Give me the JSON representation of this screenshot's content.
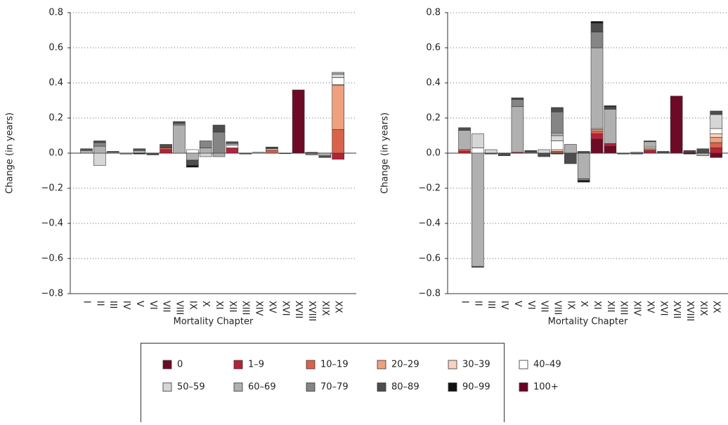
{
  "chart_data": [
    {
      "type": "stacked_bar",
      "x_label": "Mortality Chapter",
      "y_label": "Change (in years)",
      "categories": [
        "I",
        "II",
        "III",
        "IV",
        "V",
        "VI",
        "VII",
        "VIII",
        "IX",
        "X",
        "XI",
        "XII",
        "XIII",
        "XIV",
        "XV",
        "XVI",
        "XVII",
        "XVIII",
        "XIX",
        "XX"
      ],
      "ylim": [
        -0.8,
        0.8
      ],
      "yticks": [
        {
          "value": -0.8,
          "label": "−0.8"
        },
        {
          "value": -0.6,
          "label": "−0.6"
        },
        {
          "value": -0.4,
          "label": "−0.4"
        },
        {
          "value": -0.2,
          "label": "−0.2"
        },
        {
          "value": 0,
          "label": "0.0"
        },
        0.2,
        0.4,
        0.6,
        0.8
      ],
      "grid": true,
      "series": [
        {
          "name": "0",
          "color": "#6e0a26",
          "values": [
            0,
            0,
            0,
            0,
            0,
            0,
            0,
            0,
            0,
            0,
            0,
            0,
            0,
            0,
            0,
            -0.003,
            0.36,
            0,
            0,
            0
          ]
        },
        {
          "name": "1–9",
          "color": "#b5223a",
          "values": [
            0,
            0,
            0,
            0,
            0,
            0,
            0.02,
            0,
            0,
            0,
            0,
            0.03,
            0,
            0,
            0,
            0,
            0,
            0,
            0,
            -0.035
          ]
        },
        {
          "name": "10–19",
          "color": "#d9634a",
          "values": [
            0,
            0,
            0,
            0,
            0,
            0,
            0.01,
            0,
            0,
            0,
            0,
            0,
            0,
            0,
            0.015,
            0,
            0,
            0,
            0,
            0.135
          ]
        },
        {
          "name": "20–29",
          "color": "#f0a07e",
          "values": [
            0,
            0,
            0,
            0,
            0,
            0,
            0,
            0,
            0,
            0,
            0,
            0,
            0,
            0,
            0.01,
            0,
            0,
            0,
            0,
            0.25
          ]
        },
        {
          "name": "30–39",
          "color": "#f9d3c0",
          "values": [
            0,
            0,
            0,
            0,
            0,
            0,
            0,
            0,
            0,
            0,
            0,
            0,
            0,
            0,
            0,
            0,
            0,
            0,
            0,
            0.005
          ]
        },
        {
          "name": "40–49",
          "color": "#ffffff",
          "values": [
            0,
            0,
            0,
            0,
            0,
            0,
            0,
            0,
            0.02,
            0,
            0,
            0.015,
            0,
            0,
            0,
            0,
            0,
            0,
            0,
            0.04
          ]
        },
        {
          "name": "50–59",
          "color": "#d6d6d6",
          "values": [
            0,
            -0.07,
            0,
            0,
            0,
            0,
            0,
            0,
            0,
            -0.02,
            0,
            0,
            0,
            0,
            0,
            0,
            0,
            0,
            0,
            0.02
          ]
        },
        {
          "name": "60–69",
          "color": "#b0b0b0",
          "values": [
            0.015,
            0.04,
            0.005,
            0,
            0.015,
            0,
            0,
            0.16,
            -0.04,
            0.03,
            -0.02,
            0.01,
            0,
            0.005,
            0,
            0,
            0,
            0,
            -0.015,
            0.01
          ]
        },
        {
          "name": "70–79",
          "color": "#858585",
          "values": [
            0,
            0.02,
            0,
            -0.005,
            0,
            0,
            0,
            0.01,
            0,
            0.04,
            0.12,
            0,
            0,
            0,
            0,
            0,
            0,
            -0.01,
            0,
            0
          ]
        },
        {
          "name": "80–89",
          "color": "#4d4d4d",
          "values": [
            0.01,
            0.01,
            0.005,
            0,
            0.01,
            -0.01,
            0.02,
            0.01,
            -0.03,
            0,
            0.04,
            0.01,
            -0.005,
            0,
            0.01,
            0,
            0,
            0.005,
            -0.01,
            0
          ]
        },
        {
          "name": "90–99",
          "color": "#111111",
          "values": [
            0,
            0,
            0,
            0,
            -0.005,
            0,
            0,
            0,
            -0.01,
            0,
            0,
            0,
            0,
            0,
            0,
            0,
            0,
            0,
            0,
            0
          ]
        },
        {
          "name": "100+",
          "color": "#6b0022",
          "values": [
            0,
            0,
            0,
            0,
            0,
            0,
            0,
            0,
            0,
            0,
            0,
            0,
            0,
            0,
            0,
            0,
            0,
            0,
            0,
            0
          ]
        }
      ]
    },
    {
      "type": "stacked_bar",
      "x_label": "Mortality Chapter",
      "y_label": "Change (in years)",
      "categories": [
        "I",
        "II",
        "III",
        "IV",
        "V",
        "VI",
        "VII",
        "VIII",
        "IX",
        "X",
        "XI",
        "XII",
        "XIII",
        "XIV",
        "XV",
        "XVI",
        "XVII",
        "XVIII",
        "XIX",
        "XX"
      ],
      "ylim": [
        -0.8,
        0.8
      ],
      "yticks": [
        {
          "value": -0.8,
          "label": "−0.8"
        },
        {
          "value": -0.6,
          "label": "−0.6"
        },
        {
          "value": -0.4,
          "label": "−0.4"
        },
        {
          "value": -0.2,
          "label": "−0.2"
        },
        {
          "value": 0,
          "label": "0.0"
        },
        0.2,
        0.4,
        0.6,
        0.8
      ],
      "grid": true,
      "series": [
        {
          "values": [
            0,
            0,
            0,
            0,
            0,
            0,
            0,
            -0.005,
            0,
            0,
            0.08,
            0.04,
            0,
            0,
            0,
            0,
            0.325,
            0,
            0,
            -0.025
          ]
        },
        {
          "values": [
            0.01,
            0,
            0,
            0,
            0.005,
            0,
            0,
            0,
            0,
            0,
            0.03,
            0.015,
            0,
            0,
            0.015,
            0,
            0,
            0.005,
            0,
            0.03
          ]
        },
        {
          "values": [
            0.01,
            0,
            0,
            0,
            0,
            0,
            0,
            0.005,
            0,
            0,
            0.015,
            0,
            0,
            0,
            0.01,
            0,
            0,
            0,
            0,
            0.03
          ]
        },
        {
          "values": [
            0,
            0,
            0,
            0,
            0,
            0,
            0,
            0.005,
            0,
            0,
            0.01,
            0,
            0,
            0,
            0,
            0,
            0,
            0,
            0,
            0.03
          ]
        },
        {
          "values": [
            0,
            0,
            0,
            0,
            0,
            0,
            0,
            0.01,
            0,
            0,
            0,
            0,
            0,
            0,
            0.01,
            0,
            0,
            0,
            0,
            0.02
          ]
        },
        {
          "values": [
            0,
            0.03,
            0,
            0,
            0,
            0,
            0,
            0.05,
            0,
            0,
            0.005,
            0,
            0,
            0,
            0,
            0,
            0,
            0,
            0,
            0.03
          ]
        },
        {
          "values": [
            0,
            0.08,
            0.02,
            0,
            0,
            0,
            0.02,
            0.03,
            0,
            0,
            0,
            0,
            0,
            0,
            0,
            0,
            0,
            0,
            0,
            0.08
          ]
        },
        {
          "values": [
            0.11,
            -0.645,
            0,
            0,
            0.26,
            0,
            0,
            0.015,
            0.05,
            -0.145,
            0.46,
            0.195,
            0,
            0.005,
            0.03,
            0,
            0,
            0,
            -0.015,
            0
          ]
        },
        {
          "values": [
            0,
            0,
            0,
            0,
            0.04,
            0.005,
            0,
            0.12,
            0,
            -0.01,
            0.09,
            0,
            0,
            0,
            0,
            0,
            0,
            0,
            0,
            0
          ]
        },
        {
          "values": [
            0.015,
            -0.005,
            -0.005,
            -0.015,
            0.01,
            0.01,
            -0.02,
            0.025,
            -0.06,
            0.01,
            0.05,
            0.015,
            -0.005,
            -0.005,
            0.005,
            0.01,
            0,
            0.01,
            0.025,
            0.02
          ]
        },
        {
          "values": [
            0,
            0,
            0,
            0,
            0,
            0,
            0,
            0,
            0,
            -0.01,
            0.01,
            0.005,
            0,
            0,
            0,
            0,
            0,
            -0.005,
            0,
            0
          ]
        },
        {
          "values": [
            0,
            0,
            0,
            0,
            0,
            0,
            0,
            0,
            0,
            0,
            0,
            0,
            0,
            0,
            0,
            0,
            0,
            0,
            0,
            0
          ]
        }
      ]
    }
  ]
}
